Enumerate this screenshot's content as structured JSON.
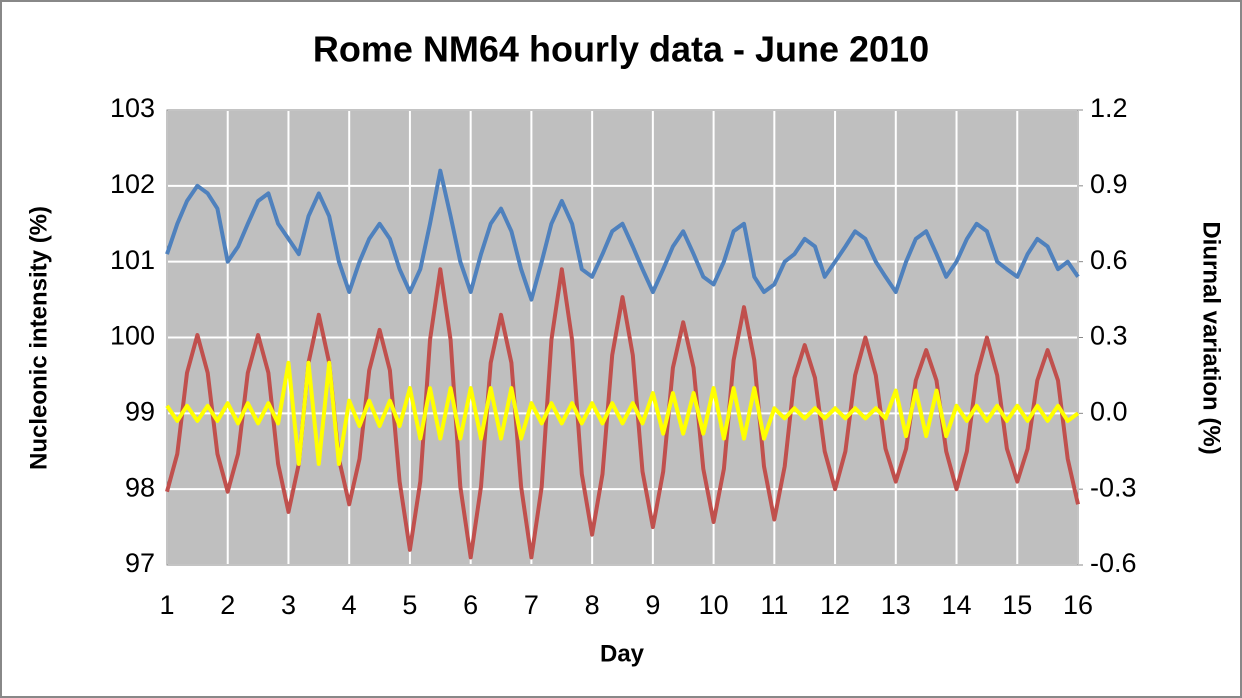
{
  "chart_data": {
    "type": "line",
    "title": "Rome NM64 hourly data - June 2010",
    "x_label": "Day",
    "y_label": "Nucleonic intensity (%)",
    "y2_label": "Diurnal variation (%)",
    "xlim": [
      1,
      16
    ],
    "xticks": [
      1,
      2,
      3,
      4,
      5,
      6,
      7,
      8,
      9,
      10,
      11,
      12,
      13,
      14,
      15,
      16
    ],
    "ylim": [
      97,
      103
    ],
    "yticks": [
      97,
      98,
      99,
      100,
      101,
      102,
      103
    ],
    "y2lim": [
      -0.6,
      1.2
    ],
    "y2ticks": [
      -0.6,
      -0.3,
      {
        "value": 0,
        "label": "0.0"
      },
      0.3,
      0.6,
      0.9,
      1.2
    ],
    "grid": true,
    "x": [
      1,
      1.17,
      1.33,
      1.5,
      1.67,
      1.83,
      2,
      2.17,
      2.33,
      2.5,
      2.67,
      2.83,
      3,
      3.17,
      3.33,
      3.5,
      3.67,
      3.83,
      4,
      4.17,
      4.33,
      4.5,
      4.67,
      4.83,
      5,
      5.17,
      5.33,
      5.5,
      5.67,
      5.83,
      6,
      6.17,
      6.33,
      6.5,
      6.67,
      6.83,
      7,
      7.17,
      7.33,
      7.5,
      7.67,
      7.83,
      8,
      8.17,
      8.33,
      8.5,
      8.67,
      8.83,
      9,
      9.17,
      9.33,
      9.5,
      9.67,
      9.83,
      10,
      10.17,
      10.33,
      10.5,
      10.67,
      10.83,
      11,
      11.17,
      11.33,
      11.5,
      11.67,
      11.83,
      12,
      12.17,
      12.33,
      12.5,
      12.67,
      12.83,
      13,
      13.17,
      13.33,
      13.5,
      13.67,
      13.83,
      14,
      14.17,
      14.33,
      14.5,
      14.67,
      14.83,
      15,
      15.17,
      15.33,
      15.5,
      15.67,
      15.83,
      16
    ],
    "series": [
      {
        "color": "#4f81bd",
        "axis": "y",
        "values": [
          101.1,
          101.5,
          101.8,
          102.0,
          101.9,
          101.7,
          101.0,
          101.2,
          101.5,
          101.8,
          101.9,
          101.5,
          101.3,
          101.1,
          101.6,
          101.9,
          101.6,
          101.0,
          100.6,
          101.0,
          101.3,
          101.5,
          101.3,
          100.9,
          100.6,
          100.9,
          101.5,
          102.2,
          101.6,
          101.0,
          100.6,
          101.1,
          101.5,
          101.7,
          101.4,
          100.9,
          100.5,
          101.0,
          101.5,
          101.8,
          101.5,
          100.9,
          100.8,
          101.1,
          101.4,
          101.5,
          101.2,
          100.9,
          100.6,
          100.9,
          101.2,
          101.4,
          101.1,
          100.8,
          100.7,
          101.0,
          101.4,
          101.5,
          100.8,
          100.6,
          100.7,
          101.0,
          101.1,
          101.3,
          101.2,
          100.8,
          101.0,
          101.2,
          101.4,
          101.3,
          101.0,
          100.8,
          100.6,
          101.0,
          101.3,
          101.4,
          101.1,
          100.8,
          101.0,
          101.3,
          101.5,
          101.4,
          101.0,
          100.9,
          100.8,
          101.1,
          101.3,
          101.2,
          100.9,
          101.0,
          100.8
        ]
      },
      {
        "color": "#c0504d",
        "axis": "y2",
        "values": [
          -0.31,
          -0.16,
          0.16,
          0.31,
          0.16,
          -0.16,
          -0.31,
          -0.16,
          0.16,
          0.31,
          0.16,
          -0.2,
          -0.39,
          -0.2,
          0.2,
          0.39,
          0.2,
          -0.18,
          -0.36,
          -0.18,
          0.17,
          0.33,
          0.17,
          -0.27,
          -0.54,
          -0.27,
          0.29,
          0.57,
          0.29,
          -0.29,
          -0.57,
          -0.29,
          0.2,
          0.39,
          0.2,
          -0.29,
          -0.57,
          -0.29,
          0.29,
          0.57,
          0.29,
          -0.24,
          -0.48,
          -0.24,
          0.23,
          0.46,
          0.23,
          -0.23,
          -0.45,
          -0.23,
          0.18,
          0.36,
          0.18,
          -0.22,
          -0.43,
          -0.22,
          0.21,
          0.42,
          0.21,
          -0.21,
          -0.42,
          -0.21,
          0.14,
          0.27,
          0.14,
          -0.15,
          -0.3,
          -0.15,
          0.15,
          0.3,
          0.15,
          -0.14,
          -0.27,
          -0.14,
          0.13,
          0.25,
          0.13,
          -0.15,
          -0.3,
          -0.15,
          0.15,
          0.3,
          0.15,
          -0.14,
          -0.27,
          -0.14,
          0.13,
          0.25,
          0.13,
          -0.18,
          -0.36
        ]
      },
      {
        "color": "#ffff00",
        "axis": "y2",
        "values": [
          0.03,
          -0.03,
          0.03,
          -0.03,
          0.03,
          -0.03,
          0.04,
          -0.04,
          0.04,
          -0.04,
          0.04,
          -0.04,
          0.2,
          -0.2,
          0.2,
          -0.2,
          0.2,
          -0.2,
          0.05,
          -0.05,
          0.05,
          -0.05,
          0.05,
          -0.05,
          0.1,
          -0.1,
          0.1,
          -0.1,
          0.1,
          -0.1,
          0.1,
          -0.1,
          0.1,
          -0.1,
          0.1,
          -0.1,
          0.04,
          -0.04,
          0.04,
          -0.04,
          0.04,
          -0.04,
          0.04,
          -0.04,
          0.04,
          -0.04,
          0.04,
          -0.04,
          0.08,
          -0.08,
          0.08,
          -0.08,
          0.08,
          -0.08,
          0.1,
          -0.1,
          0.1,
          -0.1,
          0.1,
          -0.1,
          0.02,
          -0.02,
          0.02,
          -0.02,
          0.02,
          -0.02,
          0.02,
          -0.02,
          0.02,
          -0.02,
          0.02,
          -0.02,
          0.09,
          -0.09,
          0.09,
          -0.09,
          0.09,
          -0.09,
          0.03,
          -0.03,
          0.03,
          -0.03,
          0.03,
          -0.03,
          0.03,
          -0.03,
          0.03,
          -0.03,
          0.03,
          -0.03,
          0
        ]
      }
    ]
  }
}
